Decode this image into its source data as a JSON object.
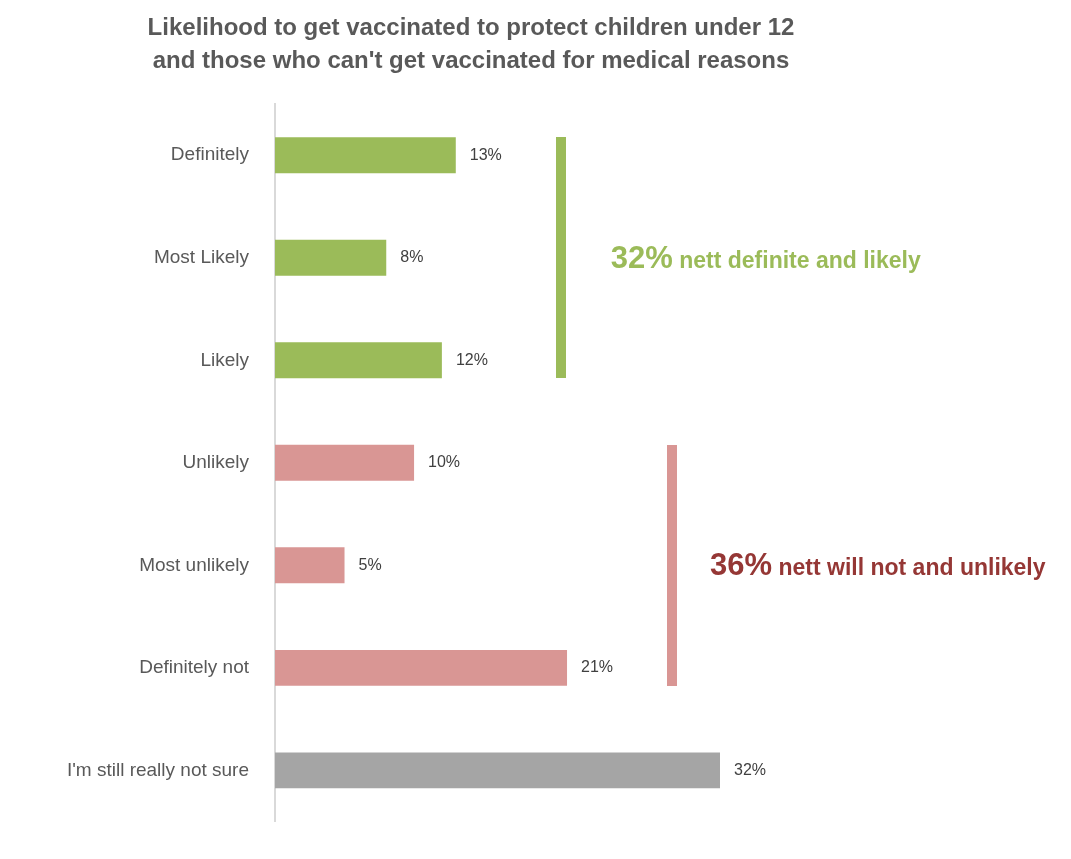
{
  "chart_data": {
    "type": "bar",
    "orientation": "horizontal",
    "title": "Likelihood to get vaccinated to protect children under 12 and those who can't get vaccinated for medical reasons",
    "categories": [
      "Definitely",
      "Most Likely",
      "Likely",
      "Unlikely",
      "Most unlikely",
      "Definitely not",
      "I'm still really not sure"
    ],
    "values": [
      13,
      8,
      12,
      10,
      5,
      21,
      32
    ],
    "colors": [
      "#9bbb59",
      "#9bbb59",
      "#9bbb59",
      "#d99694",
      "#d99694",
      "#d99694",
      "#a5a5a5"
    ],
    "value_labels": [
      "13%",
      "8%",
      "12%",
      "10%",
      "5%",
      "21%",
      "32%"
    ],
    "annotations": [
      "32% nett definite and likely",
      "36% nett will not and unlikely"
    ],
    "tick_labels": "y"
  }
}
